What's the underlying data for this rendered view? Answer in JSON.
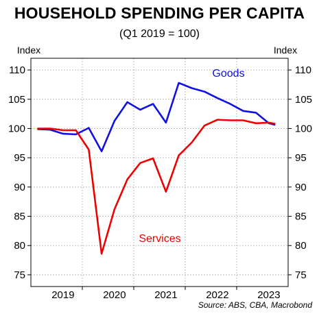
{
  "chart_data": {
    "type": "line",
    "title": "HOUSEHOLD SPENDING PER CAPITA",
    "subtitle": "(Q1 2019 = 100)",
    "ylabel_left": "Index",
    "ylabel_right": "Index",
    "ylim": [
      73,
      112
    ],
    "yticks": [
      75,
      80,
      85,
      90,
      95,
      100,
      105,
      110
    ],
    "xlim": [
      2018.75,
      2023.75
    ],
    "xticks": [
      {
        "label": "2019",
        "center": 2019.375
      },
      {
        "label": "2020",
        "center": 2020.375
      },
      {
        "label": "2021",
        "center": 2021.375
      },
      {
        "label": "2022",
        "center": 2022.375
      },
      {
        "label": "2023",
        "center": 2023.375
      }
    ],
    "year_boundaries": [
      2019.75,
      2020.75,
      2021.75,
      2022.75
    ],
    "grid": "horizontal",
    "series": [
      {
        "name": "Goods",
        "color": "#1010e0",
        "x": [
          2018.875,
          2019.125,
          2019.375,
          2019.625,
          2019.875,
          2020.125,
          2020.375,
          2020.625,
          2020.875,
          2021.125,
          2021.375,
          2021.625,
          2021.875,
          2022.125,
          2022.375,
          2022.625,
          2022.875,
          2023.125,
          2023.375,
          2023.5
        ],
        "values": [
          99.9,
          99.8,
          99.1,
          99.0,
          100.1,
          96.1,
          101.3,
          104.5,
          103.2,
          104.2,
          101.0,
          107.8,
          106.9,
          106.3,
          105.2,
          104.2,
          103.0,
          102.7,
          100.9,
          100.6
        ]
      },
      {
        "name": "Services",
        "color": "#ee0000",
        "x": [
          2018.875,
          2019.125,
          2019.375,
          2019.625,
          2019.875,
          2020.125,
          2020.375,
          2020.625,
          2020.875,
          2021.125,
          2021.375,
          2021.625,
          2021.875,
          2022.125,
          2022.375,
          2022.625,
          2022.875,
          2023.125,
          2023.375,
          2023.5
        ],
        "values": [
          100.0,
          100.0,
          99.7,
          99.7,
          96.4,
          78.6,
          86.2,
          91.3,
          94.1,
          94.9,
          89.2,
          95.4,
          97.6,
          100.5,
          101.5,
          101.4,
          101.4,
          100.9,
          101.0,
          100.8
        ]
      }
    ],
    "annotations": [
      {
        "text": "Goods",
        "series": "Goods"
      },
      {
        "text": "Services",
        "series": "Services"
      }
    ],
    "source": "Source: ABS, CBA, Macrobond"
  }
}
